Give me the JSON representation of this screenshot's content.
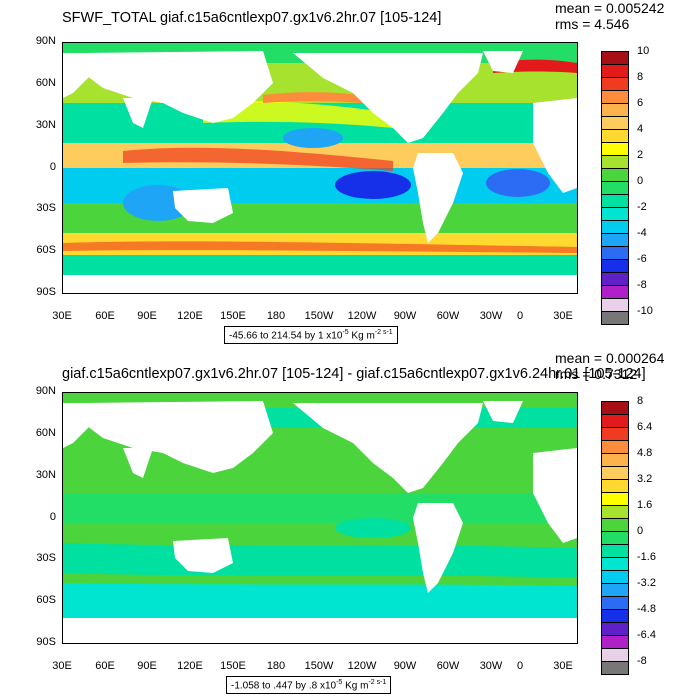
{
  "top": {
    "title": "SFWF_TOTAL giaf.c15a6cntlexp07.gx1v6.2hr.07 [105-124]",
    "mean": "mean = 0.005242",
    "rms": "rms = 4.546",
    "colorbar_labels": [
      "10",
      "8",
      "6",
      "4",
      "2",
      "0",
      "-2",
      "-4",
      "-6",
      "-8",
      "-10"
    ],
    "colorbar_colors": [
      "#a50f15",
      "#e31a1c",
      "#f03b20",
      "#fd8d3c",
      "#feb24c",
      "#fecc5c",
      "#ffd92f",
      "#ffff00",
      "#a6e22e",
      "#4cd43c",
      "#22dd66",
      "#00e0a0",
      "#00e5d0",
      "#00ccf0",
      "#1ea5f5",
      "#2c6cf5",
      "#1530e8",
      "#6020c8",
      "#b020c8",
      "#e8d0e8",
      "#777777"
    ],
    "range_text": "-45.66 to 214.54 by 1 x10",
    "range_exp": "-5",
    "range_unit": " Kg m",
    "range_unit_exp": "-2 s-1"
  },
  "bottom": {
    "title": "giaf.c15a6cntlexp07.gx1v6.2hr.07 [105-124] - giaf.c15a6cntlexp07.gx1v6.24hr.01 [105-124]",
    "mean": "mean = 0.000264",
    "rms": "rms = 0.7312",
    "colorbar_labels": [
      "8",
      "6.4",
      "4.8",
      "3.2",
      "1.6",
      "0",
      "-1.6",
      "-3.2",
      "-4.8",
      "-6.4",
      "-8"
    ],
    "colorbar_colors": [
      "#a50f15",
      "#e31a1c",
      "#f03b20",
      "#fd8d3c",
      "#feb24c",
      "#fecc5c",
      "#ffd92f",
      "#ffff00",
      "#a6e22e",
      "#4cd43c",
      "#22dd66",
      "#00e0a0",
      "#00e5d0",
      "#00ccf0",
      "#1ea5f5",
      "#2c6cf5",
      "#1530e8",
      "#6020c8",
      "#b020c8",
      "#e8d0e8",
      "#777777"
    ],
    "range_text": "-1.058 to .447 by .8 x10",
    "range_exp": "-5",
    "range_unit": " Kg m",
    "range_unit_exp": "-2 s-1"
  },
  "axes": {
    "lat_labels": [
      "90N",
      "60N",
      "30N",
      "0",
      "30S",
      "60S",
      "90S"
    ],
    "lon_labels": [
      "30E",
      "60E",
      "90E",
      "120E",
      "150E",
      "180",
      "150W",
      "120W",
      "90W",
      "60W",
      "30W",
      "0",
      "30E"
    ]
  }
}
